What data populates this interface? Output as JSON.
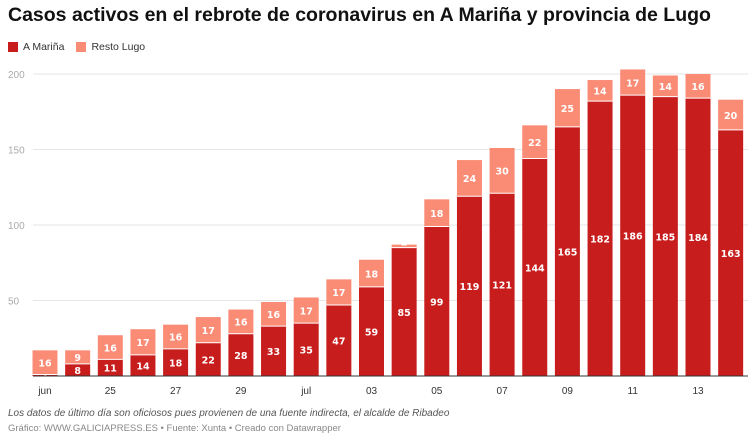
{
  "title": "Casos activos en el rebrote de coronavirus en A Mariña y provincia de Lugo",
  "note": "Los datos de último día son oficiosos pues provienen de una fuente indirecta, el alcalde de Ribadeo",
  "source": "Gráfico: WWW.GALICIAPRESS.ES • Fuente: Xunta • Creado con Datawrapper",
  "chart_data": {
    "type": "bar",
    "stacked": true,
    "title": "Casos activos en el rebrote de coronavirus en A Mariña y provincia de Lugo",
    "legend_position": "top-left",
    "grid": true,
    "ylim": [
      0,
      200
    ],
    "yticks": [
      50,
      100,
      150,
      200
    ],
    "x_tick_labels": [
      "jun",
      "",
      "25",
      "",
      "27",
      "",
      "29",
      "",
      "jul",
      "",
      "03",
      "",
      "05",
      "",
      "07",
      "",
      "09",
      "",
      "11",
      "",
      "13",
      ""
    ],
    "series": [
      {
        "name": "A Mariña",
        "color": "#c71e1d",
        "values": [
          1,
          8,
          11,
          14,
          18,
          22,
          28,
          33,
          35,
          47,
          59,
          85,
          99,
          119,
          121,
          144,
          165,
          182,
          186,
          185,
          184,
          163
        ]
      },
      {
        "name": "Resto Lugo",
        "color": "#fa8c76",
        "values": [
          16,
          9,
          16,
          17,
          16,
          17,
          16,
          16,
          17,
          17,
          18,
          2,
          18,
          24,
          30,
          22,
          25,
          14,
          17,
          14,
          16,
          20
        ]
      }
    ]
  }
}
